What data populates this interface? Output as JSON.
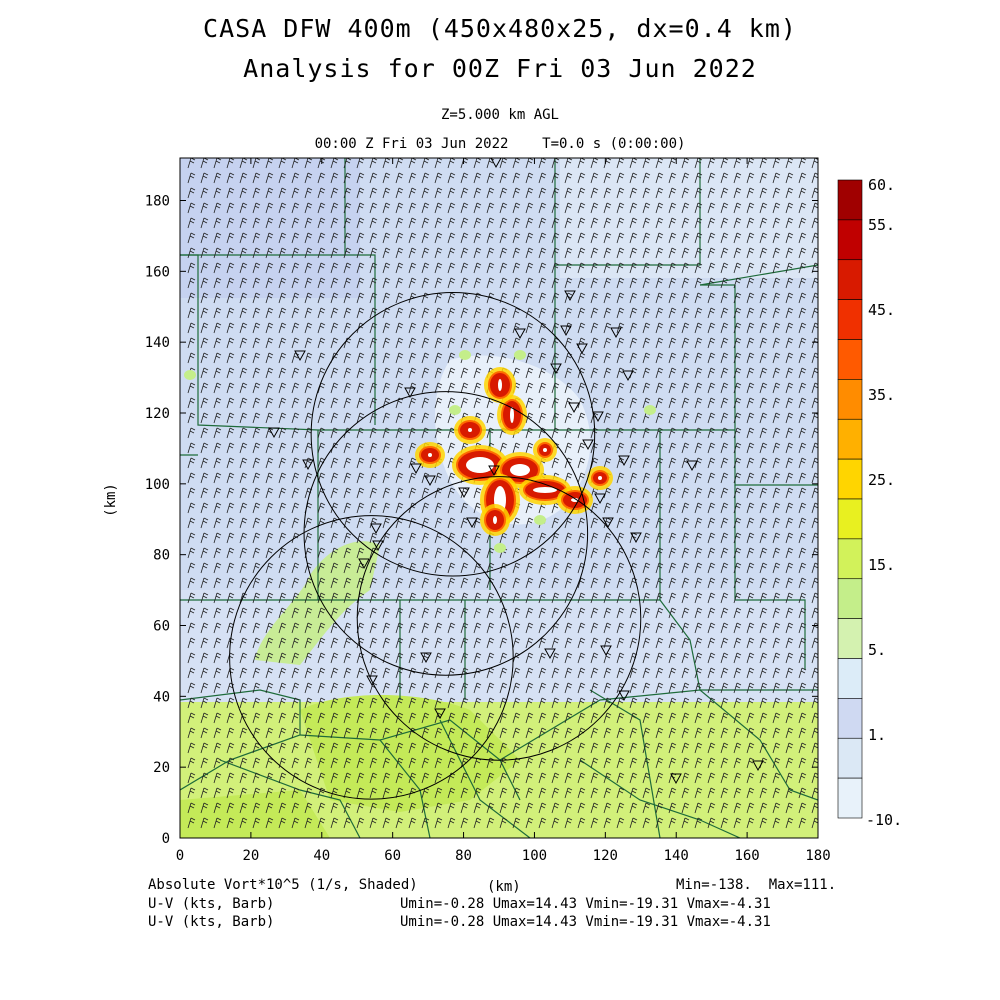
{
  "title": {
    "line1": "CASA DFW 400m (450x480x25, dx=0.4 km)",
    "line2": "Analysis for 00Z Fri 03 Jun 2022",
    "level": "Z=5.000 km AGL",
    "time": "00:00 Z Fri 03 Jun 2022    T=0.0 s (0:00:00)"
  },
  "axes": {
    "xlabel": "(km)",
    "ylabel": "(km)",
    "x_range": [
      0,
      180
    ],
    "y_range": [
      0,
      192
    ],
    "x_ticks": [
      "0",
      "20",
      "40",
      "60",
      "80",
      "100",
      "120",
      "140",
      "160",
      "180"
    ],
    "y_ticks": [
      "0",
      "20",
      "40",
      "60",
      "80",
      "100",
      "120",
      "140",
      "160",
      "180"
    ]
  },
  "colorbar": {
    "labels": [
      "60.",
      "55.",
      "45.",
      "35.",
      "25.",
      "15.",
      "5.",
      "1.",
      "-10."
    ],
    "colors": [
      "#a00000",
      "#c00000",
      "#d81a00",
      "#f03000",
      "#ff5a00",
      "#ff8c00",
      "#ffb000",
      "#ffd500",
      "#e8f020",
      "#d2f25a",
      "#c4ee8a",
      "#d4f2b0",
      "#dcecf8",
      "#cfd9f2",
      "#dbe8f5",
      "#e8f2fa"
    ]
  },
  "footer": {
    "field": "Absolute Vort*10^5 (1/s, Shaded)",
    "xunit": "(km)",
    "minmax": "Min=-138.  Max=111.",
    "wind1_label": "U-V (kts, Barb)",
    "wind1_stats": "Umin=-0.28 Umax=14.43 Vmin=-19.31 Vmax=-4.31",
    "wind2_label": "U-V (kts, Barb)",
    "wind2_stats": "Umin=-0.28 Umax=14.43 Vmin=-19.31 Vmax=-4.31"
  },
  "radar_rings_km": [
    {
      "x": 77,
      "y": 114,
      "r": 40
    },
    {
      "x": 75,
      "y": 86,
      "r": 40
    },
    {
      "x": 90,
      "y": 62,
      "r": 40
    },
    {
      "x": 54,
      "y": 51,
      "r": 40
    }
  ],
  "colors": {
    "background_field": "#cfdcf2",
    "south_field": "#d2f07a",
    "county_lines": "#1e6b3a",
    "barbs": "#222222"
  }
}
